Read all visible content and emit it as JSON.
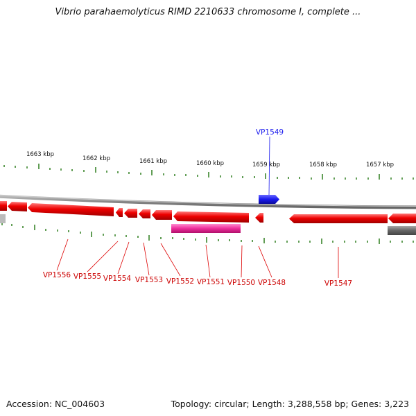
{
  "title": "Vibrio parahaemolyticus RIMD 2210633 chromosome I, complete ...",
  "footer": {
    "accession": "Accession: NC_004603",
    "summary": "Topology: circular; Length: 3,288,558 bp; Genes: 3,223"
  },
  "colors": {
    "forward_gene": "#1a1aee",
    "reverse_gene": "#ee0000",
    "highlight_gene": "#ee2e9c",
    "other_feature": "#666666",
    "tick": "#2e7d1e",
    "backbone": "#888888"
  },
  "scale": {
    "ticks": [
      {
        "label": "1663 kbp"
      },
      {
        "label": "1662 kbp"
      },
      {
        "label": "1661 kbp"
      },
      {
        "label": "1660 kbp"
      },
      {
        "label": "1659 kbp"
      },
      {
        "label": "1658 kbp"
      },
      {
        "label": "1657 kbp"
      }
    ]
  },
  "gene_labels": [
    {
      "id": "VP1549",
      "strand": "forward"
    },
    {
      "id": "VP1556",
      "strand": "reverse"
    },
    {
      "id": "VP1555",
      "strand": "reverse"
    },
    {
      "id": "VP1554",
      "strand": "reverse"
    },
    {
      "id": "VP1553",
      "strand": "reverse"
    },
    {
      "id": "VP1552",
      "strand": "reverse"
    },
    {
      "id": "VP1551",
      "strand": "reverse"
    },
    {
      "id": "VP1550",
      "strand": "reverse"
    },
    {
      "id": "VP1548",
      "strand": "reverse"
    },
    {
      "id": "VP1547",
      "strand": "reverse"
    }
  ]
}
